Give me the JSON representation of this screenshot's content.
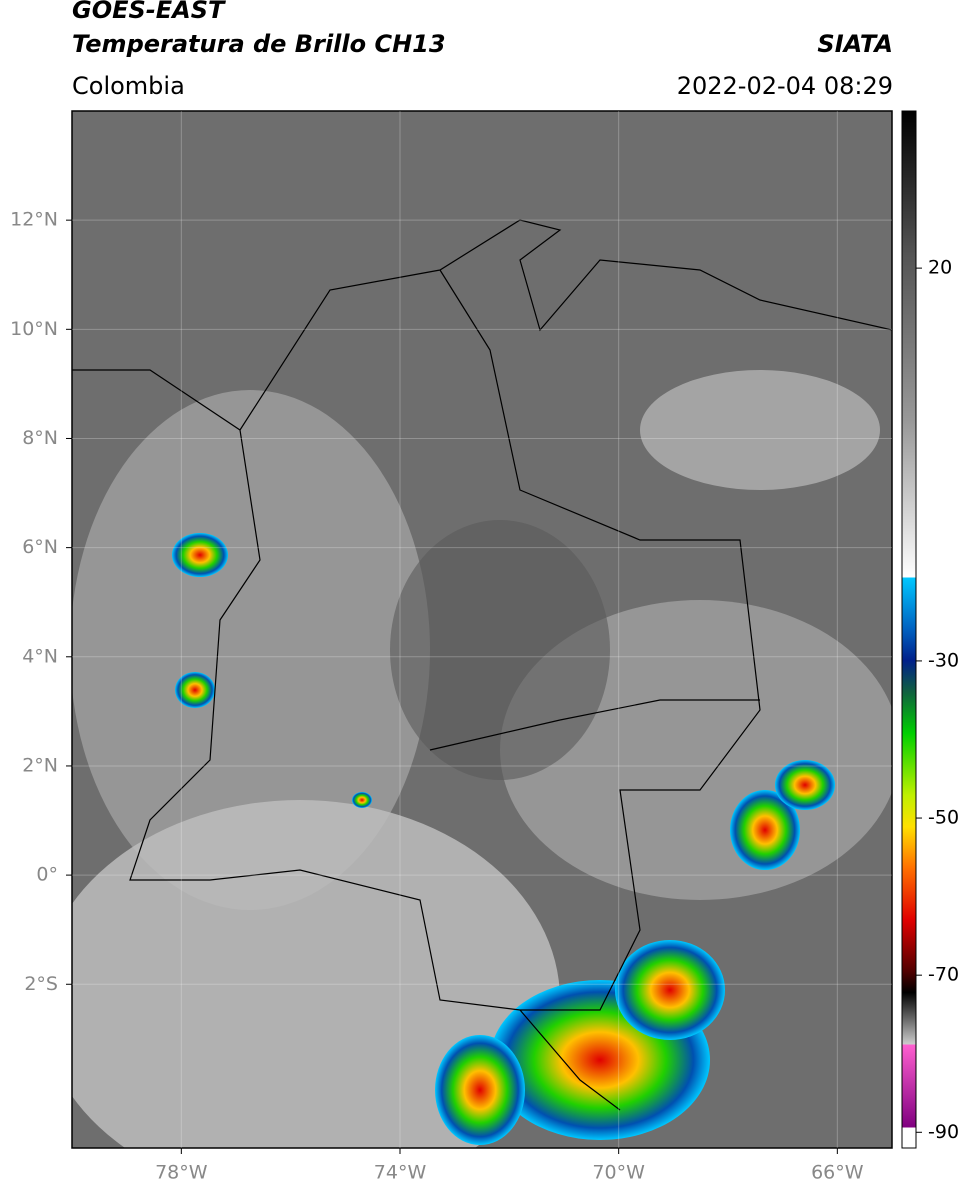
{
  "header": {
    "title": "GOES-EAST",
    "subtitle": "Temperatura de Brillo CH13",
    "region": "Colombia",
    "source": "SIATA",
    "datetime": "2022-02-04 08:29"
  },
  "map": {
    "xlim": [
      -80,
      -65
    ],
    "ylim": [
      -5,
      14
    ],
    "xticks": [
      {
        "value": -78,
        "label": "78°W"
      },
      {
        "value": -74,
        "label": "74°W"
      },
      {
        "value": -70,
        "label": "70°W"
      },
      {
        "value": -66,
        "label": "66°W"
      }
    ],
    "yticks": [
      {
        "value": 12,
        "label": "12°N"
      },
      {
        "value": 10,
        "label": "10°N"
      },
      {
        "value": 8,
        "label": "8°N"
      },
      {
        "value": 6,
        "label": "6°N"
      },
      {
        "value": 4,
        "label": "4°N"
      },
      {
        "value": 2,
        "label": "2°N"
      },
      {
        "value": 0,
        "label": "0°"
      },
      {
        "value": -2,
        "label": "2°S"
      }
    ],
    "grid": true
  },
  "colorbar": {
    "lim": [
      -92,
      40
    ],
    "ticks": [
      20,
      -30,
      -50,
      -70,
      -90
    ]
  }
}
